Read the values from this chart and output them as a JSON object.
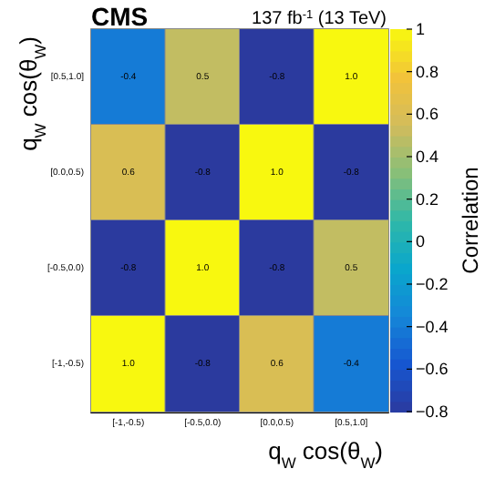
{
  "chart_data": {
    "type": "heatmap",
    "title": "CMS",
    "subtitle": "137 fb$^{-1}$ (13 TeV)",
    "xlabel": "q$_{W}$ cos(θ$_{W}$)",
    "ylabel": "q$_{W}$ cos(θ$_{W}$)",
    "clabel": "Correlation",
    "categories": [
      "[-1,-0.5)",
      "[-0.5,0.0)",
      "[0.0,0.5)",
      "[0.5,1.0]"
    ],
    "y_categories": [
      "[0.5,1.0]",
      "[0.0,0.5)",
      "[-0.5,0.0)",
      "[-1,-0.5)"
    ],
    "cells": [
      [
        -0.4,
        0.5,
        -0.8,
        1.0
      ],
      [
        0.6,
        -0.8,
        1.0,
        -0.8
      ],
      [
        -0.8,
        1.0,
        -0.8,
        0.5
      ],
      [
        1.0,
        -0.8,
        0.6,
        -0.4
      ]
    ],
    "cell_labels": [
      [
        "-0.4",
        "0.5",
        "-0.8",
        "1.0"
      ],
      [
        "0.6",
        "-0.8",
        "1.0",
        "-0.8"
      ],
      [
        "-0.8",
        "1.0",
        "-0.8",
        "0.5"
      ],
      [
        "1.0",
        "-0.8",
        "0.6",
        "-0.4"
      ]
    ],
    "clim": [
      -0.8,
      1
    ],
    "cticks": [
      -0.8,
      -0.6,
      -0.4,
      -0.2,
      0,
      0.2,
      0.4,
      0.6,
      0.8,
      1
    ]
  }
}
